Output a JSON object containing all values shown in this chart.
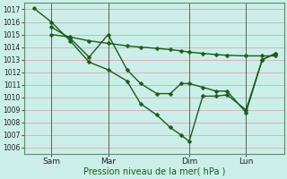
{
  "xlabel": "Pression niveau de la mer( hPa )",
  "bg_color": "#cceee8",
  "grid_color": "#d4a0a8",
  "line_color": "#1a5c1a",
  "ylim": [
    1005.5,
    1017.5
  ],
  "yticks": [
    1006,
    1007,
    1008,
    1009,
    1010,
    1011,
    1012,
    1013,
    1014,
    1015,
    1016,
    1017
  ],
  "xlim": [
    -0.3,
    9.3
  ],
  "xtick_positions": [
    0.7,
    2.8,
    5.8,
    7.9
  ],
  "xtick_labels": [
    "Sam",
    "Mar",
    "Dim",
    "Lun"
  ],
  "vline_positions": [
    0.7,
    2.8,
    5.8,
    7.9
  ],
  "series1_x": [
    0.05,
    0.7,
    1.4,
    2.1,
    2.8,
    3.5,
    4.0,
    4.6,
    5.1,
    5.5,
    5.8,
    6.3,
    6.8,
    7.2,
    7.9,
    8.5,
    9.0
  ],
  "series1_y": [
    1017.1,
    1016.0,
    1014.5,
    1012.8,
    1012.2,
    1011.3,
    1009.5,
    1008.6,
    1007.6,
    1007.0,
    1006.5,
    1010.1,
    1010.1,
    1010.2,
    1009.0,
    1013.0,
    1013.5
  ],
  "series2_x": [
    0.7,
    1.4,
    2.1,
    2.8,
    3.5,
    4.0,
    4.6,
    5.1,
    5.5,
    5.8,
    6.3,
    6.8,
    7.2,
    7.9,
    8.5,
    9.0
  ],
  "series2_y": [
    1015.6,
    1014.7,
    1013.2,
    1015.0,
    1012.2,
    1011.1,
    1010.3,
    1010.3,
    1011.1,
    1011.1,
    1010.8,
    1010.5,
    1010.5,
    1008.8,
    1013.0,
    1013.5
  ],
  "series3_x": [
    0.7,
    1.4,
    2.1,
    2.8,
    3.5,
    4.0,
    4.6,
    5.1,
    5.5,
    5.8,
    6.3,
    6.8,
    7.2,
    7.9,
    8.5,
    9.0
  ],
  "series3_y": [
    1015.0,
    1014.8,
    1014.5,
    1014.3,
    1014.1,
    1014.0,
    1013.9,
    1013.8,
    1013.7,
    1013.6,
    1013.5,
    1013.4,
    1013.35,
    1013.3,
    1013.3,
    1013.3
  ],
  "marker_size": 2.5,
  "line_width": 1.0
}
